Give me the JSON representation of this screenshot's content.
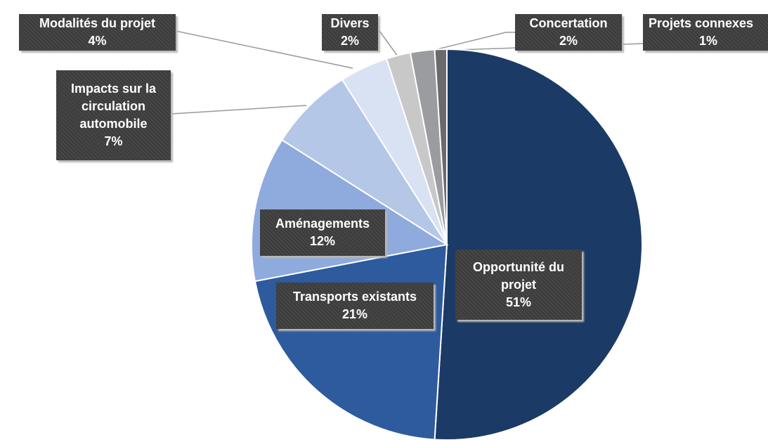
{
  "chart_data": {
    "type": "pie",
    "categories": [
      "Opportunité du projet",
      "Transports existants",
      "Aménagements",
      "Impacts sur la circulation automobile",
      "Modalités du projet",
      "Divers",
      "Concertation",
      "Projets connexes"
    ],
    "values": [
      51,
      21,
      12,
      7,
      4,
      2,
      2,
      1
    ],
    "value_labels": [
      "51%",
      "21%",
      "12%",
      "7%",
      "4%",
      "2%",
      "2%",
      "1%"
    ],
    "colors": [
      "#1b3a66",
      "#2e5a9e",
      "#8faadc",
      "#b4c7e7",
      "#d9e2f3",
      "#c8c8c8",
      "#9a9ca0",
      "#6a6a6c"
    ]
  }
}
